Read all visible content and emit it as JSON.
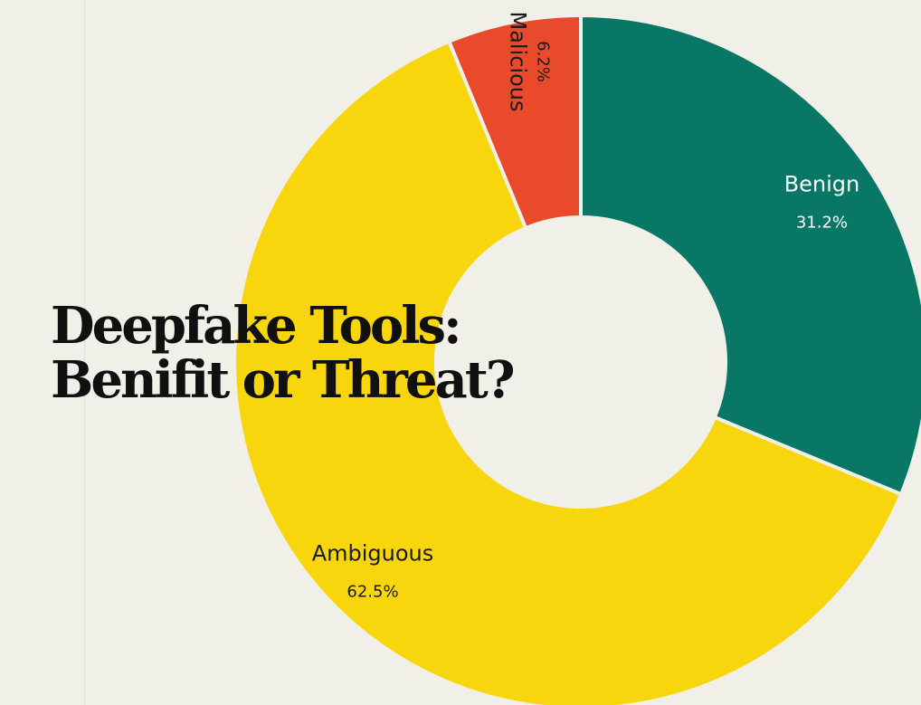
{
  "title": {
    "line1": "Deepfake Tools:",
    "line2": "Benifit or Threat?"
  },
  "chart_data": {
    "type": "pie",
    "donut": true,
    "title": "Deepfake Tools: Benifit or Threat?",
    "slices": [
      {
        "name": "Benign",
        "value": 31.2,
        "value_label": "31.2%",
        "color": "#087766",
        "text_color": "#ffffff"
      },
      {
        "name": "Ambiguous",
        "value": 62.5,
        "value_label": "62.5%",
        "color": "#f8d60e",
        "text_color": "#1a1a1a"
      },
      {
        "name": "Malicious",
        "value": 6.2,
        "value_label": "6.2%",
        "color": "#ea4a2c",
        "text_color": "#1a1a1a"
      }
    ],
    "legend": "none",
    "grid": false
  },
  "colors": {
    "background": "#f0efe8",
    "title": "#101010",
    "slice_border": "#f0efe8"
  }
}
